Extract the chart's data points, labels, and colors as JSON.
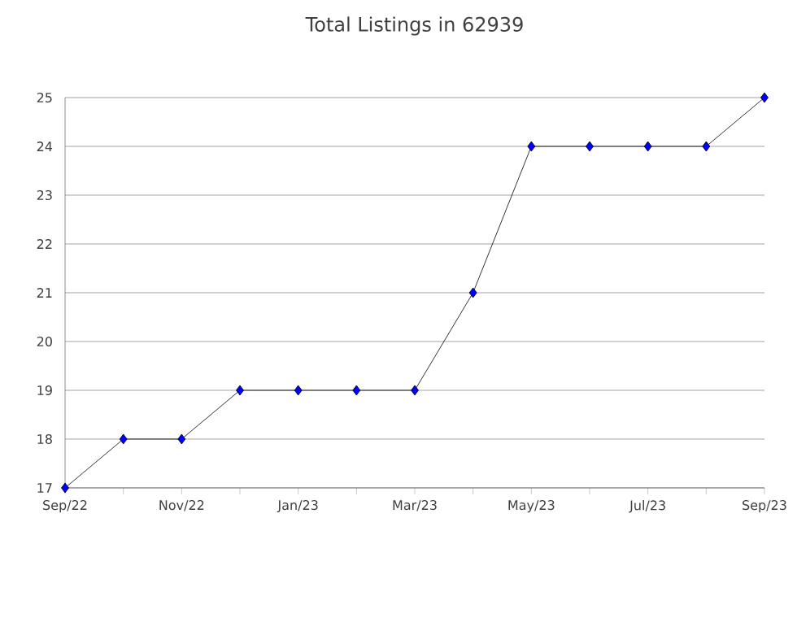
{
  "chart_data": {
    "type": "line",
    "title": "Total Listings in 62939",
    "x": [
      "2022-09",
      "2022-10",
      "2022-11",
      "2022-12",
      "2023-01",
      "2023-02",
      "2023-03",
      "2023-04",
      "2023-05",
      "2023-06",
      "2023-07",
      "2023-08",
      "2023-09"
    ],
    "series": [
      {
        "color": "#0000ff",
        "values": [
          17,
          18,
          18,
          19,
          19,
          19,
          19,
          21,
          24,
          24,
          24,
          24,
          25
        ]
      }
    ],
    "xlim": [
      "2022-09",
      "2023-09"
    ],
    "xticks": [
      {
        "value": "2022-09",
        "label": "Sep/22"
      },
      {
        "value": "2022-10",
        "label": null
      },
      {
        "value": "2022-11",
        "label": "Nov/22"
      },
      {
        "value": "2022-12",
        "label": null
      },
      {
        "value": "2023-01",
        "label": "Jan/23"
      },
      {
        "value": "2023-02",
        "label": null
      },
      {
        "value": "2023-03",
        "label": "Mar/23"
      },
      {
        "value": "2023-04",
        "label": null
      },
      {
        "value": "2023-05",
        "label": "May/23"
      },
      {
        "value": "2023-06",
        "label": null
      },
      {
        "value": "2023-07",
        "label": "Jul/23"
      },
      {
        "value": "2023-08",
        "label": null
      },
      {
        "value": "2023-09",
        "label": "Sep/23"
      }
    ],
    "ylim": [
      17,
      25
    ],
    "yticks": [
      17,
      18,
      19,
      20,
      21,
      22,
      23,
      24,
      25
    ],
    "grid": "y",
    "marker": "diamond",
    "line_style": "solid"
  }
}
